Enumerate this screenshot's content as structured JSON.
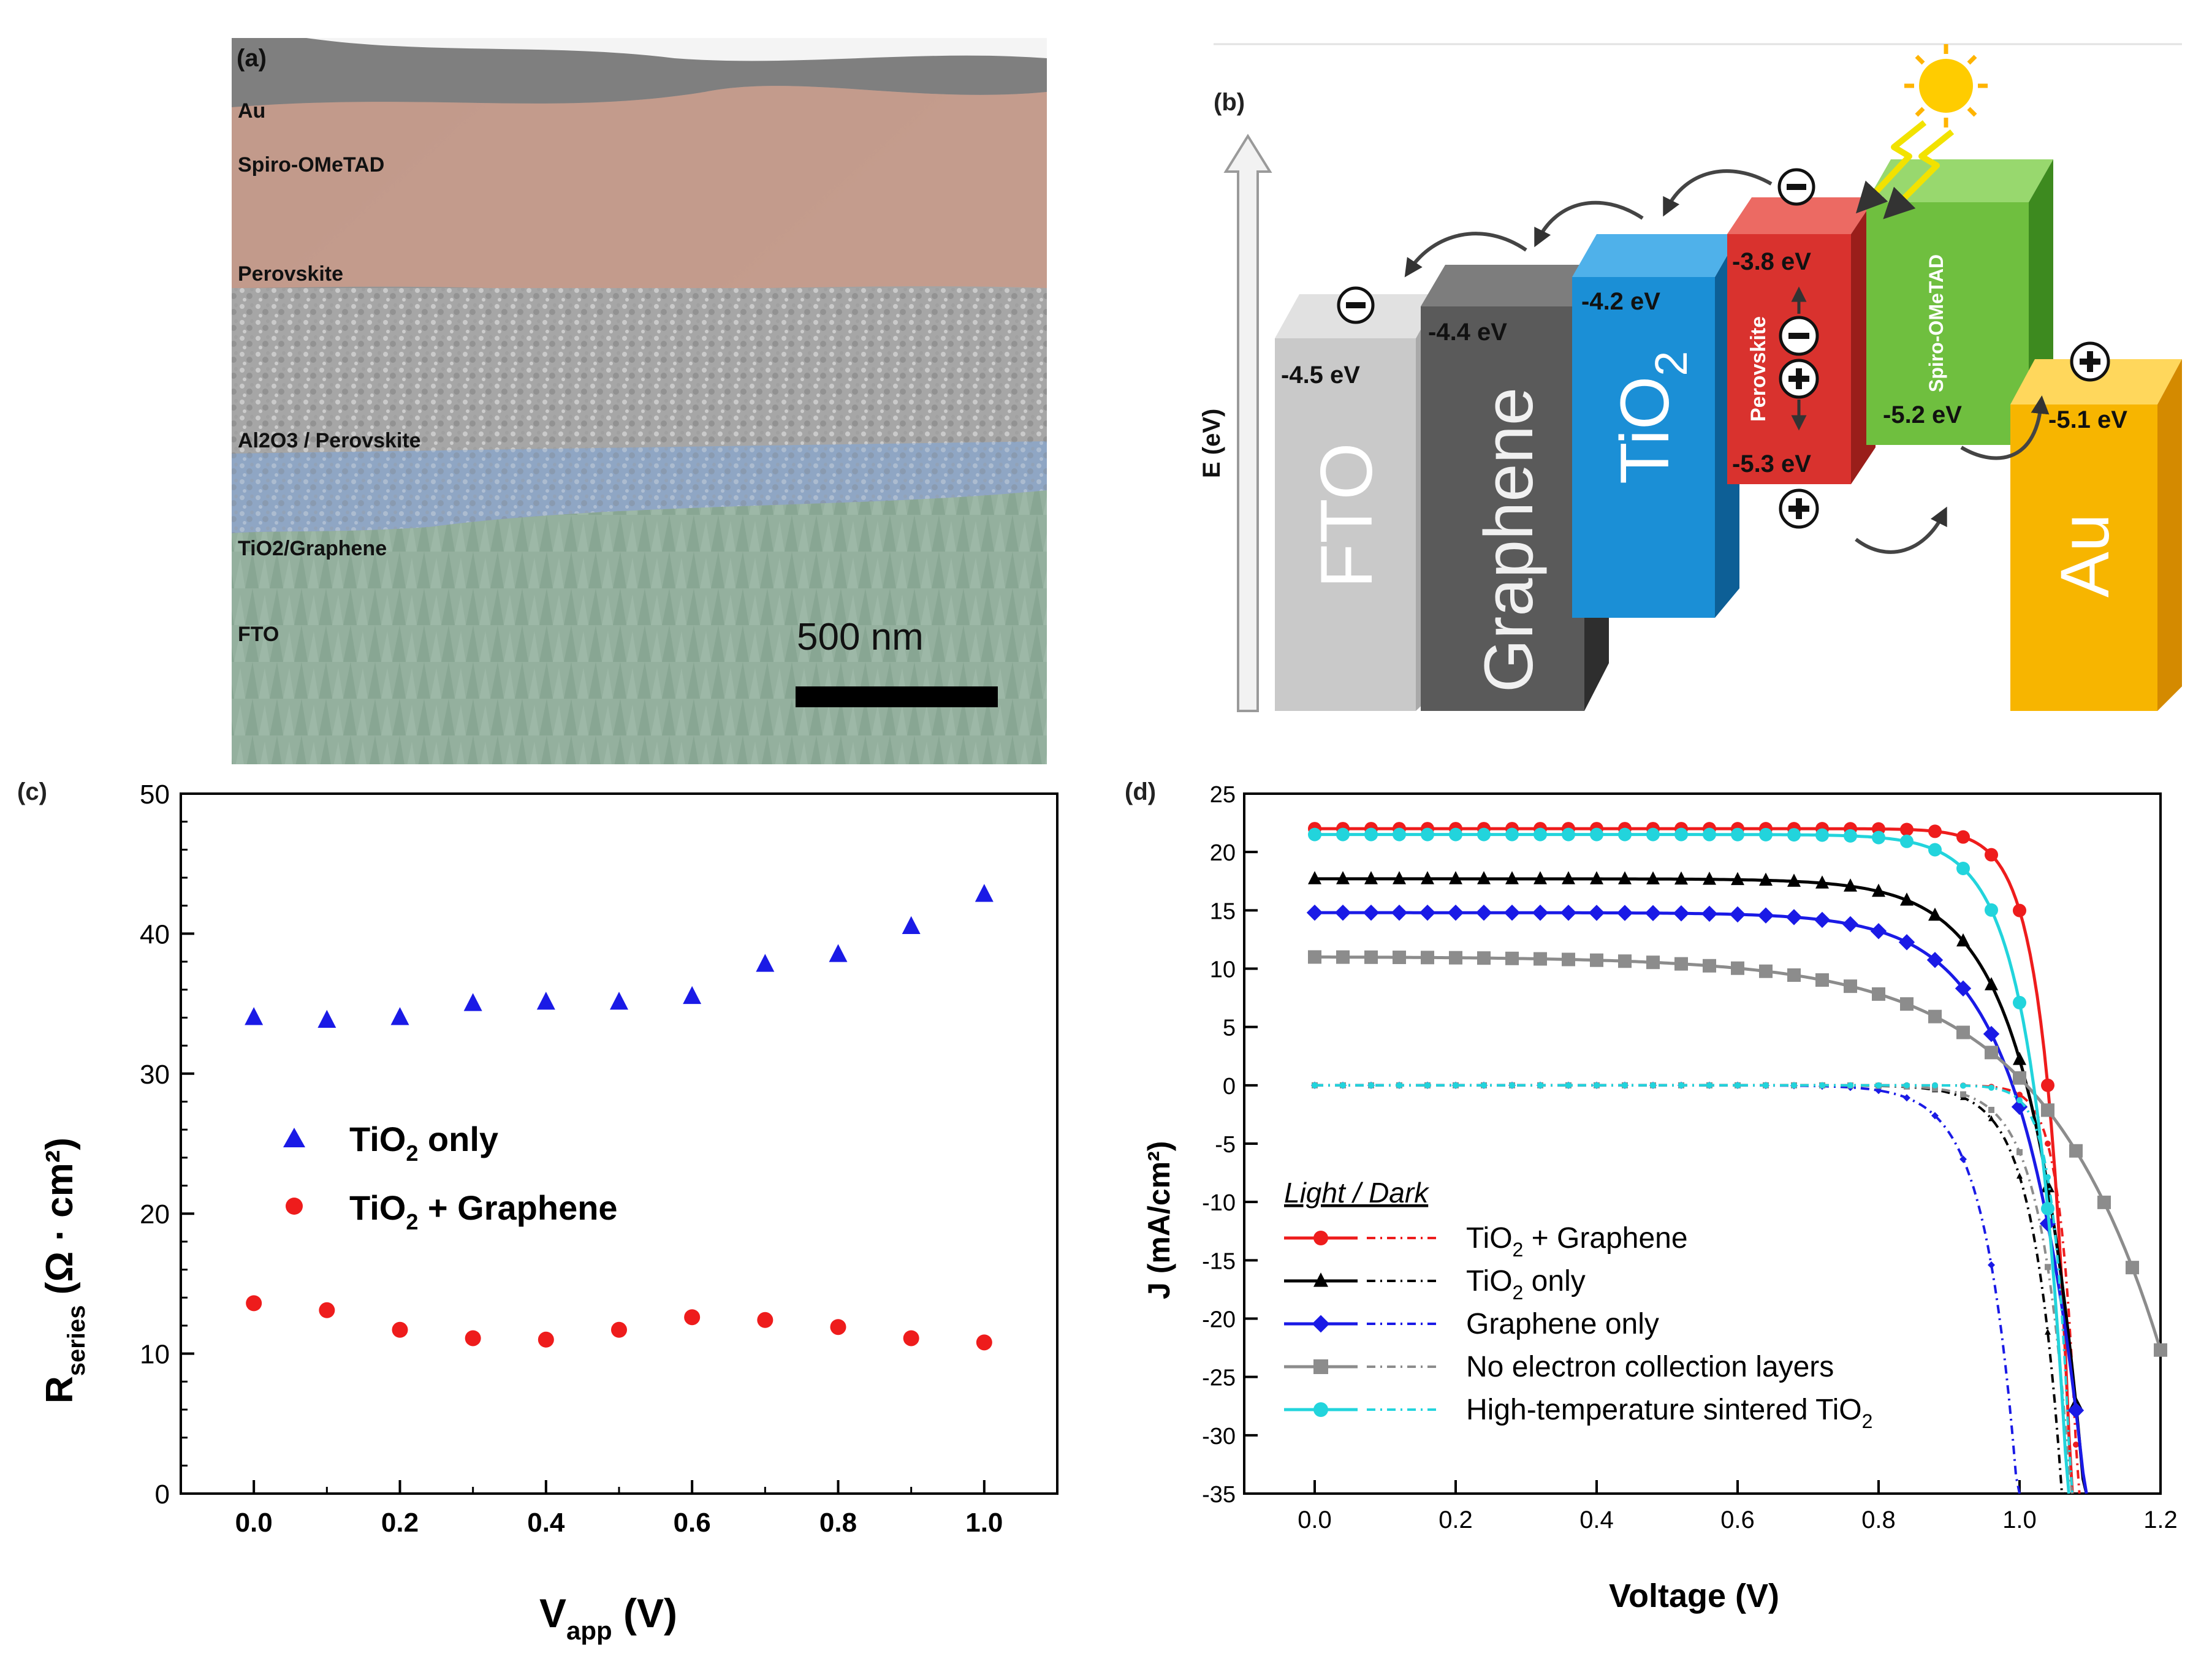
{
  "panel_a": {
    "label": "(a)",
    "layers": [
      "Au",
      "Spiro-OMeTAD",
      "Perovskite",
      "Al2O3 / Perovskite",
      "TiO2/Graphene",
      "FTO"
    ],
    "scale_bar": "500 nm"
  },
  "panel_b": {
    "label": "(b)",
    "axis_label": "E (eV)",
    "blocks": [
      {
        "name": "FTO",
        "level": "-4.5 eV",
        "color": "#c9c9c9"
      },
      {
        "name": "Graphene",
        "level": "-4.4 eV",
        "color": "#5a5a5a"
      },
      {
        "name": "TiO",
        "sub": "2",
        "level": "-4.2 eV",
        "color": "#1b8fd6"
      },
      {
        "name": "Perovskite",
        "level_top": "-3.8 eV",
        "level_bottom": "-5.3 eV",
        "color": "#d9322e"
      },
      {
        "name": "Spiro-OMeTAD",
        "level": "-5.2 eV",
        "color": "#6fbf3f"
      },
      {
        "name": "Au",
        "level": "-5.1 eV",
        "color": "#f7b500"
      }
    ]
  },
  "panel_c": {
    "label": "(c)",
    "chart_data": {
      "type": "scatter",
      "xlabel_main": "V",
      "xlabel_sub": "app",
      "xlabel_unit": " (V)",
      "ylabel_main": "R",
      "ylabel_sub": "series",
      "ylabel_unit": "  (Ω · cm²)",
      "xlim": [
        -0.1,
        1.1
      ],
      "ylim": [
        0,
        50
      ],
      "xticks": [
        "0.0",
        "0.2",
        "0.4",
        "0.6",
        "0.8",
        "1.0"
      ],
      "yticks": [
        "0",
        "10",
        "20",
        "30",
        "40",
        "50"
      ],
      "series": [
        {
          "name": "TiO2 only",
          "legend_main": "TiO",
          "legend_sub": "2",
          "legend_rest": " only",
          "color": "#1a1ae6",
          "marker": "triangle",
          "x": [
            0.0,
            0.1,
            0.2,
            0.3,
            0.4,
            0.5,
            0.6,
            0.7,
            0.8,
            0.9,
            1.0
          ],
          "y": [
            34.0,
            33.8,
            34.0,
            35.0,
            35.1,
            35.1,
            35.5,
            37.8,
            38.5,
            40.5,
            42.8
          ]
        },
        {
          "name": "TiO2 + Graphene",
          "legend_main": "TiO",
          "legend_sub": "2",
          "legend_rest": " + Graphene",
          "color": "#ee1c1c",
          "marker": "circle",
          "x": [
            0.0,
            0.1,
            0.2,
            0.3,
            0.4,
            0.5,
            0.6,
            0.7,
            0.8,
            0.9,
            1.0
          ],
          "y": [
            13.6,
            13.1,
            11.7,
            11.1,
            11.0,
            11.7,
            12.6,
            12.4,
            11.9,
            11.1,
            10.8
          ]
        }
      ]
    }
  },
  "panel_d": {
    "label": "(d)",
    "chart_data": {
      "type": "line",
      "xlabel": "Voltage (V)",
      "ylabel": "J (mA/cm²)",
      "xlim": [
        -0.1,
        1.2
      ],
      "ylim": [
        -35,
        25
      ],
      "xticks": [
        "0.0",
        "0.2",
        "0.4",
        "0.6",
        "0.8",
        "1.0",
        "1.2"
      ],
      "yticks": [
        "25",
        "20",
        "15",
        "10",
        "5",
        "0",
        "-5",
        "-10",
        "-15",
        "-20",
        "-25",
        "-30",
        "-35"
      ],
      "legend_title": "Light / Dark",
      "series": [
        {
          "name": "TiO2 + Graphene",
          "legend_main": "TiO",
          "legend_sub": "2",
          "legend_rest": " + Graphene",
          "color": "#ee1c1c",
          "marker": "circle",
          "light": {
            "jsc": 22.0,
            "voc": 1.04,
            "n": 0.035
          },
          "dark": {
            "v0": 1.04,
            "j0": 0.005,
            "n": 0.022
          }
        },
        {
          "name": "TiO2 only",
          "legend_main": "TiO",
          "legend_sub": "2",
          "legend_rest": " only",
          "color": "#000000",
          "marker": "triangle",
          "light": {
            "jsc": 17.7,
            "voc": 1.01,
            "n": 0.075
          },
          "dark": {
            "v0": 1.01,
            "j0": 0.01,
            "n": 0.04
          }
        },
        {
          "name": "Graphene only",
          "legend_main": "Graphene only",
          "legend_sub": "",
          "legend_rest": "",
          "color": "#1a1ae6",
          "marker": "diamond",
          "light": {
            "jsc": 14.8,
            "voc": 0.99,
            "n": 0.085
          },
          "dark": {
            "v0": 0.99,
            "j0": 0.03,
            "n": 0.045
          }
        },
        {
          "name": "No electron collection layers",
          "legend_main": "No electron collection layers",
          "legend_sub": "",
          "legend_rest": "",
          "color": "#8c8c8c",
          "marker": "square",
          "light": {
            "jsc": 11.0,
            "voc": 1.01,
            "n": 0.17
          },
          "dark": {
            "v0": 1.05,
            "j0": 0.02,
            "n": 0.04
          }
        },
        {
          "name": "High-temperature sintered TiO2",
          "legend_main": "High-temperature sintered TiO",
          "legend_sub": "2",
          "legend_rest": "",
          "color": "#22d4dc",
          "marker": "circle",
          "light": {
            "jsc": 21.5,
            "voc": 1.02,
            "n": 0.05
          },
          "dark": {
            "v0": 1.03,
            "j0": 0.005,
            "n": 0.022
          }
        }
      ]
    }
  }
}
